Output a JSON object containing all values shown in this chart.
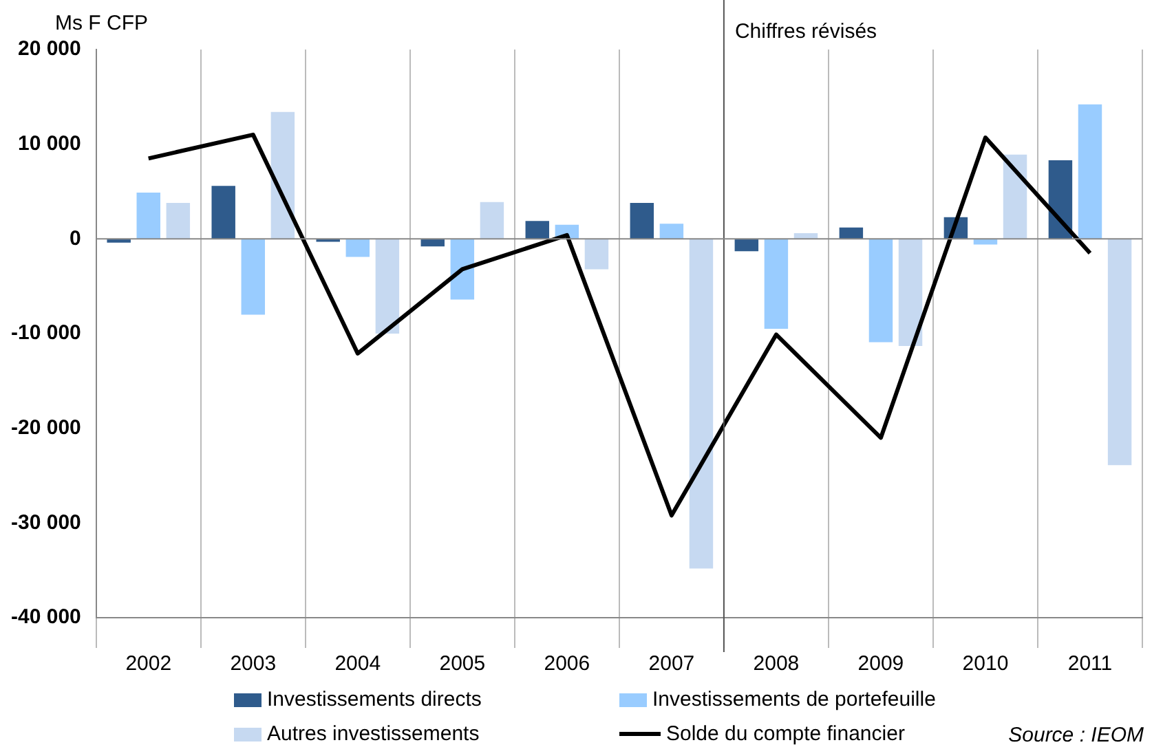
{
  "chart_data": {
    "type": "bar",
    "ylabel": "Ms F CFP",
    "categories": [
      "2002",
      "2003",
      "2004",
      "2005",
      "2006",
      "2007",
      "2008",
      "2009",
      "2010",
      "2011"
    ],
    "series": [
      {
        "name": "Investissements directs",
        "color": "#2f5b8c",
        "values": [
          -400,
          5600,
          -300,
          -800,
          1900,
          3800,
          -1300,
          1200,
          2300,
          8300
        ]
      },
      {
        "name": "Investissements de portefeuille",
        "color": "#99ccff",
        "values": [
          4900,
          -8000,
          -1900,
          -6400,
          1500,
          1600,
          -9500,
          -10900,
          -600,
          14200
        ]
      },
      {
        "name": "Autres investissements",
        "color": "#c6d9f1",
        "values": [
          3800,
          13400,
          -10000,
          3900,
          -3200,
          -34800,
          600,
          -11300,
          8900,
          -23900
        ]
      },
      {
        "name": "Solde du compte financier",
        "type": "line",
        "color": "#000000",
        "values": [
          8500,
          11000,
          -12100,
          -3200,
          400,
          -29200,
          -10100,
          -21000,
          10700,
          -1500
        ]
      }
    ],
    "ylim": [
      -40000,
      20000
    ],
    "yticks": [
      {
        "value": -40000,
        "label": "-40 000"
      },
      {
        "value": -30000,
        "label": "-30 000"
      },
      {
        "value": -20000,
        "label": "-20 000"
      },
      {
        "value": -10000,
        "label": "-10 000"
      },
      {
        "value": 0,
        "label": "0"
      },
      {
        "value": 10000,
        "label": "10 000"
      },
      {
        "value": 20000,
        "label": "20 000"
      }
    ],
    "grid": "x",
    "legend": "bottom",
    "marker": "none",
    "line_style": "solid",
    "ref_lines": [
      {
        "axis": "x",
        "value": "2008",
        "label": "Chiffres révisés",
        "color": "#555555"
      }
    ],
    "annotations": [
      "Source : IEOM"
    ]
  }
}
